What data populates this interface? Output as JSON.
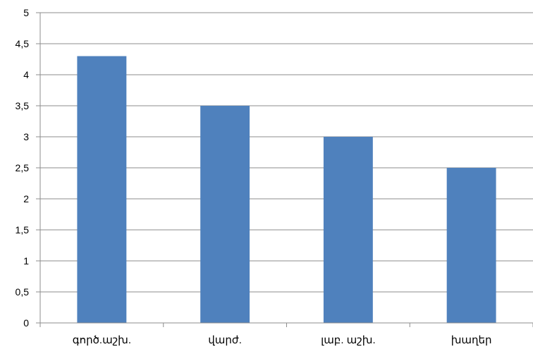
{
  "chart_data": {
    "type": "bar",
    "title": "",
    "xlabel": "",
    "ylabel": "",
    "categories": [
      "գործ.աշխ.",
      "վարժ.",
      "լաբ. աշխ.",
      "խաղեր"
    ],
    "values": [
      4.3,
      3.5,
      3.0,
      2.5
    ],
    "ylim": [
      0,
      5
    ],
    "yticks": [
      0,
      0.5,
      1,
      1.5,
      2,
      2.5,
      3,
      3.5,
      4,
      4.5,
      5
    ],
    "ytick_labels": [
      "0",
      "0,5",
      "1",
      "1,5",
      "2",
      "2,5",
      "3",
      "3,5",
      "4",
      "4,5",
      "5"
    ],
    "bar_color": "#4f81bd",
    "grid": true,
    "legend": "none"
  }
}
